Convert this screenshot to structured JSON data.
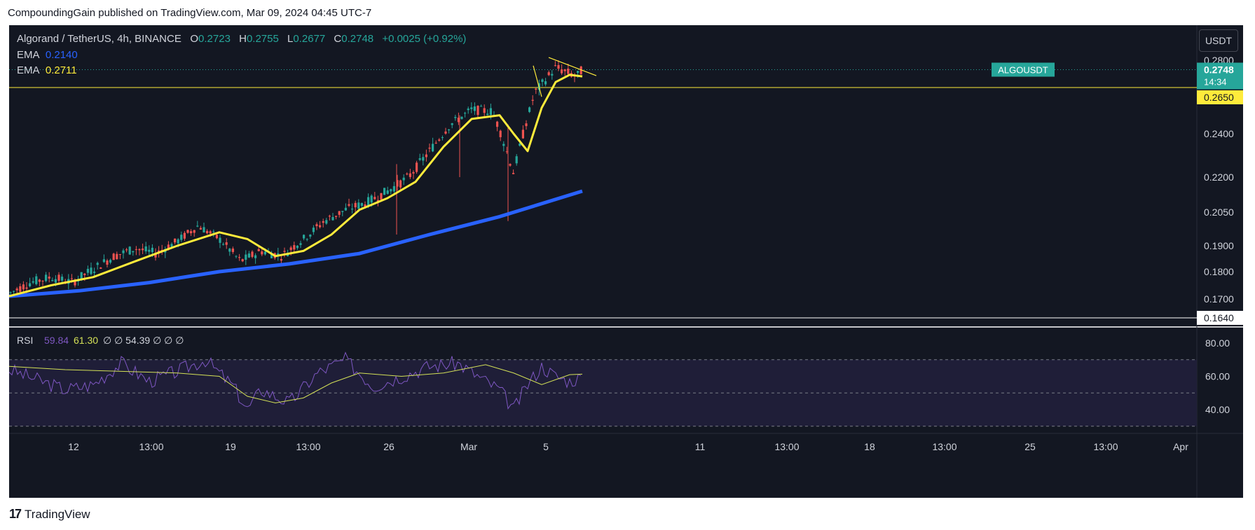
{
  "caption": "CompoundingGain published on TradingView.com, Mar 09, 2024 04:45 UTC-7",
  "header": {
    "symbol": "Algorand / TetherUS, 4h, BINANCE",
    "o_label": "O",
    "o_value": "0.2723",
    "h_label": "H",
    "h_value": "0.2755",
    "l_label": "L",
    "l_value": "0.2677",
    "c_label": "C",
    "c_value": "0.2748",
    "change": "+0.0025 (+0.92%)"
  },
  "ema_rows": [
    {
      "label": "EMA",
      "value": "0.2140",
      "color": "#2962ff"
    },
    {
      "label": "EMA",
      "value": "0.2711",
      "color": "#ffeb3b"
    }
  ],
  "unit_button": "USDT",
  "price_tags": {
    "symbol": "ALGOUSDT",
    "last": "0.2748",
    "countdown": "14:34",
    "level_high": "0.2650",
    "level_low": "0.1640"
  },
  "rsi": {
    "label": "RSI",
    "v1": "59.84",
    "v2": "61.30",
    "rest": "∅  ∅  54.39  ∅  ∅  ∅"
  },
  "footer_brand": "TradingView",
  "colors": {
    "background": "#131722",
    "up": "#26a69a",
    "down": "#ef5350",
    "ema_fast": "#ffeb3b",
    "ema_slow": "#2962ff",
    "rsi_line": "#7e57c2",
    "rsi_ma": "#d4e157",
    "rsi_band": "#1f1e38"
  },
  "chart_data": [
    {
      "type": "candlestick",
      "title": "Algorand / TetherUS, 4h, BINANCE",
      "y_ticks": [
        0.28,
        0.24,
        0.22,
        0.205,
        0.19,
        0.18,
        0.17
      ],
      "y_tick_labels": [
        "0.2800",
        "0.2400",
        "0.2200",
        "0.2050",
        "0.1900",
        "0.1800",
        "0.1700"
      ],
      "x_tick_labels": [
        "12",
        "13:00",
        "19",
        "13:00",
        "26",
        "Mar",
        "5",
        "11",
        "13:00",
        "18",
        "13:00",
        "25",
        "13:00",
        "Apr"
      ],
      "horizontal_levels": [
        0.265,
        0.164
      ],
      "x": [
        0,
        30,
        60,
        90,
        120,
        150,
        180,
        210,
        240,
        270,
        300,
        330,
        360,
        390,
        420,
        450,
        480,
        510,
        540,
        570,
        600,
        630,
        660,
        690,
        720,
        750,
        780,
        810,
        818
      ],
      "close_approx": [
        0.172,
        0.176,
        0.178,
        0.176,
        0.181,
        0.186,
        0.189,
        0.187,
        0.192,
        0.199,
        0.193,
        0.184,
        0.188,
        0.186,
        0.193,
        0.201,
        0.206,
        0.209,
        0.214,
        0.22,
        0.232,
        0.245,
        0.253,
        0.252,
        0.222,
        0.262,
        0.276,
        0.271,
        0.2748
      ],
      "series": [
        {
          "name": "EMA",
          "last": 0.214,
          "x": [
            0,
            100,
            200,
            300,
            400,
            500,
            600,
            700,
            818
          ],
          "values": [
            0.171,
            0.173,
            0.176,
            0.18,
            0.183,
            0.187,
            0.195,
            0.203,
            0.214
          ]
        },
        {
          "name": "EMA",
          "last": 0.2711,
          "x": [
            0,
            60,
            120,
            180,
            240,
            300,
            340,
            380,
            420,
            460,
            500,
            540,
            580,
            620,
            660,
            700,
            720,
            740,
            760,
            780,
            800,
            818
          ],
          "values": [
            0.171,
            0.175,
            0.178,
            0.184,
            0.19,
            0.196,
            0.193,
            0.186,
            0.188,
            0.195,
            0.206,
            0.211,
            0.218,
            0.234,
            0.248,
            0.25,
            0.24,
            0.232,
            0.254,
            0.268,
            0.272,
            0.2711
          ]
        }
      ]
    },
    {
      "type": "line",
      "title": "RSI",
      "y_ticks": [
        80,
        60,
        40
      ],
      "y_tick_labels": [
        "80.00",
        "60.00",
        "40.00"
      ],
      "bands": [
        70,
        50,
        30
      ],
      "series": [
        {
          "name": "RSI",
          "last": 59.84,
          "x": [
            0,
            40,
            80,
            120,
            160,
            200,
            240,
            280,
            320,
            340,
            360,
            400,
            440,
            480,
            520,
            560,
            600,
            640,
            680,
            700,
            720,
            740,
            760,
            780,
            800,
            818
          ],
          "values": [
            64,
            58,
            52,
            55,
            68,
            57,
            63,
            70,
            54,
            40,
            52,
            44,
            62,
            70,
            54,
            60,
            66,
            68,
            57,
            52,
            40,
            55,
            66,
            60,
            57,
            59.84
          ]
        },
        {
          "name": "RSI MA",
          "last": 61.3,
          "x": [
            0,
            80,
            160,
            240,
            300,
            340,
            380,
            420,
            460,
            500,
            560,
            620,
            680,
            720,
            760,
            800,
            818
          ],
          "values": [
            66,
            64,
            63,
            62,
            60,
            48,
            44,
            47,
            56,
            62,
            60,
            62,
            67,
            62,
            55,
            61,
            61.3
          ]
        }
      ]
    }
  ]
}
